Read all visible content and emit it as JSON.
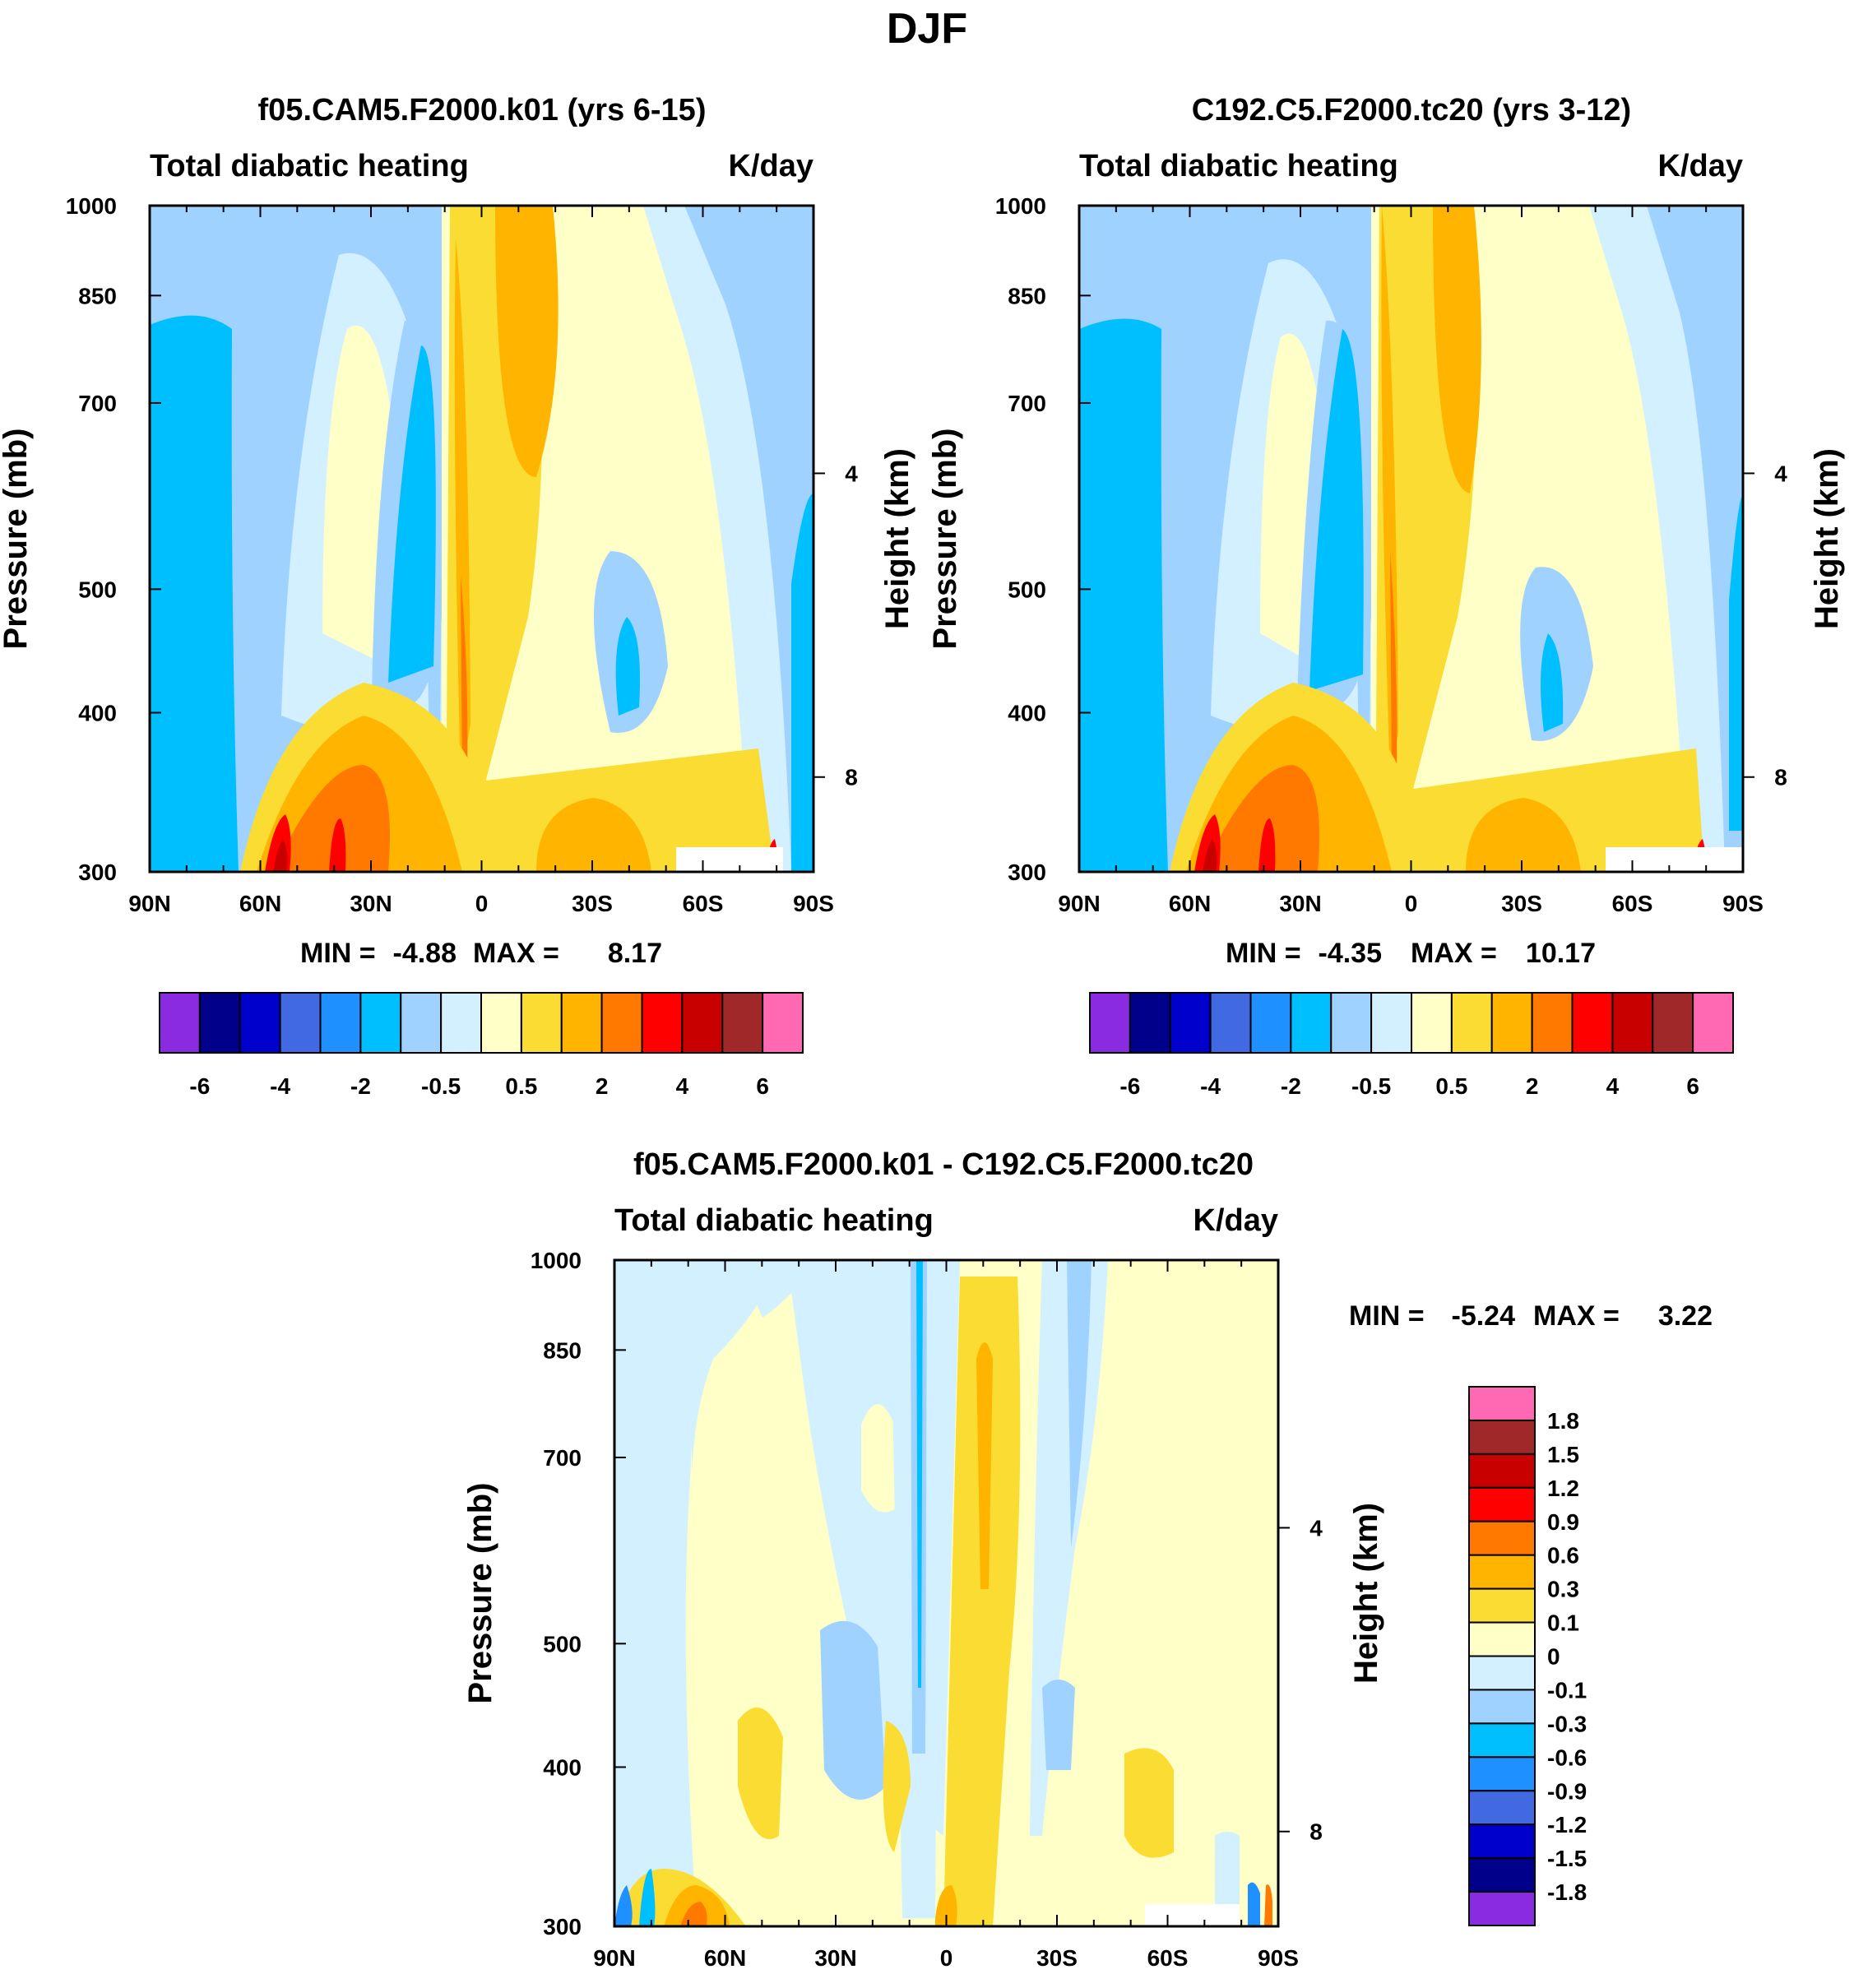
{
  "figure": {
    "title": "DJF"
  },
  "colors": {
    "abs_levels": [
      "#8a2be2",
      "#00008b",
      "#0000cd",
      "#4169e1",
      "#1e90ff",
      "#00bfff",
      "#a0d2ff",
      "#d2f0ff",
      "#ffffc8",
      "#fadc32",
      "#ffb400",
      "#ff7800",
      "#ff0000",
      "#c80000",
      "#a02828",
      "#ff69b4"
    ],
    "diff_levels": [
      "#8a2be2",
      "#00008b",
      "#0000cd",
      "#4169e1",
      "#1e90ff",
      "#00bfff",
      "#a0d2ff",
      "#d2f0ff",
      "#ffffc8",
      "#fadc32",
      "#ffb400",
      "#ff7800",
      "#ff0000",
      "#c80000",
      "#a02828",
      "#ff69b4"
    ]
  },
  "chart_data": [
    {
      "type": "heatmap",
      "title": "f05.CAM5.F2000.k01 (yrs 6-15)",
      "left_string": "Total diabatic heating",
      "right_string": "K/day",
      "ylabel": "Pressure (mb)",
      "ylabel_right": "Height (km)",
      "x_ticks": [
        "90N",
        "60N",
        "30N",
        "0",
        "30S",
        "60S",
        "90S"
      ],
      "x_range": [
        90,
        -90
      ],
      "y_ticks": [
        "300",
        "400",
        "500",
        "700",
        "850",
        "1000"
      ],
      "y_range": [
        1000,
        300
      ],
      "height_ticks": [
        "8",
        "4"
      ],
      "stats": {
        "min_label": "MIN =",
        "min": "-4.88",
        "max_label": "MAX =",
        "max": "8.17"
      },
      "colorbar_labels": [
        "-6",
        "-4",
        "-2",
        "-0.5",
        "0.5",
        "2",
        "4",
        "6"
      ]
    },
    {
      "type": "heatmap",
      "title": "C192.C5.F2000.tc20 (yrs 3-12)",
      "left_string": "Total diabatic heating",
      "right_string": "K/day",
      "ylabel": "Pressure (mb)",
      "ylabel_right": "Height (km)",
      "x_ticks": [
        "90N",
        "60N",
        "30N",
        "0",
        "30S",
        "60S",
        "90S"
      ],
      "x_range": [
        90,
        -90
      ],
      "y_ticks": [
        "300",
        "400",
        "500",
        "700",
        "850",
        "1000"
      ],
      "y_range": [
        1000,
        300
      ],
      "height_ticks": [
        "8",
        "4"
      ],
      "stats": {
        "min_label": "MIN =",
        "min": "-4.35",
        "max_label": "MAX =",
        "max": "10.17"
      },
      "colorbar_labels": [
        "-6",
        "-4",
        "-2",
        "-0.5",
        "0.5",
        "2",
        "4",
        "6"
      ]
    },
    {
      "type": "heatmap",
      "title": "f05.CAM5.F2000.k01 - C192.C5.F2000.tc20",
      "left_string": "Total diabatic heating",
      "right_string": "K/day",
      "ylabel": "Pressure (mb)",
      "ylabel_right": "Height (km)",
      "x_ticks": [
        "90N",
        "60N",
        "30N",
        "0",
        "30S",
        "60S",
        "90S"
      ],
      "x_range": [
        90,
        -90
      ],
      "y_ticks": [
        "300",
        "400",
        "500",
        "700",
        "850",
        "1000"
      ],
      "y_range": [
        1000,
        300
      ],
      "height_ticks": [
        "8",
        "4"
      ],
      "stats": {
        "min_label": "MIN =",
        "min": "-5.24",
        "max_label": "MAX =",
        "max": "3.22"
      },
      "colorbar_labels": [
        "1.8",
        "1.5",
        "1.2",
        "0.9",
        "0.6",
        "0.3",
        "0.1",
        "0",
        "-0.1",
        "-0.3",
        "-0.6",
        "-0.9",
        "-1.2",
        "-1.5",
        "-1.8"
      ]
    }
  ]
}
